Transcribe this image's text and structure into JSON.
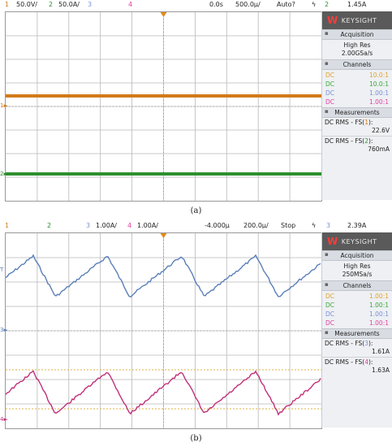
{
  "panel_a": {
    "topbar": {
      "ch1_num": "1",
      "ch1_scale": "50.0V/",
      "ch2_num": "2",
      "ch2_scale": "50.0A/",
      "ch3_num": "3",
      "ch4_num": "4",
      "time_offset": "0.0s",
      "time_scale": "500.0µ/",
      "trigger_mode": "Auto?",
      "trig_icon": "ϟ",
      "trig_ch": "2",
      "trig_level": "1.45A"
    },
    "side": {
      "brand": "KEYSIGHT",
      "acq_title": "Acquisition",
      "acq_mode": "High Res",
      "acq_rate": "2.00GSa/s",
      "ch_title": "Channels",
      "channels": [
        {
          "coupling": "DC",
          "ratio": "10.0:1",
          "color": "#e0a030"
        },
        {
          "coupling": "DC",
          "ratio": "10.0:1",
          "color": "#3aa83a"
        },
        {
          "coupling": "DC",
          "ratio": "1.00:1",
          "color": "#7a8fd8"
        },
        {
          "coupling": "DC",
          "ratio": "1.00:1",
          "color": "#e040a0"
        }
      ],
      "meas_title": "Measurements",
      "meas1_label": "DC RMS - FS(",
      "meas1_ch": "1",
      "meas1_value": "22.6V",
      "meas2_label": "DC RMS - FS(",
      "meas2_ch": "2",
      "meas2_value": "760mA"
    },
    "caption": "(a)"
  },
  "panel_b": {
    "topbar": {
      "ch1_num": "1",
      "ch2_num": "2",
      "ch3_num": "3",
      "ch3_scale": "1.00A/",
      "ch4_num": "4",
      "ch4_scale": "1.00A/",
      "time_offset": "-4.000µ",
      "time_scale": "200.0µ/",
      "trigger_mode": "Stop",
      "trig_icon": "ϟ",
      "trig_ch": "3",
      "trig_level": "2.39A"
    },
    "side": {
      "brand": "KEYSIGHT",
      "acq_title": "Acquisition",
      "acq_mode": "High Res",
      "acq_rate": "250MSa/s",
      "ch_title": "Channels",
      "channels": [
        {
          "coupling": "DC",
          "ratio": "1.00:1",
          "color": "#e0a030"
        },
        {
          "coupling": "DC",
          "ratio": "1.00:1",
          "color": "#3aa83a"
        },
        {
          "coupling": "DC",
          "ratio": "1.00:1",
          "color": "#7a8fd8"
        },
        {
          "coupling": "DC",
          "ratio": "1.00:1",
          "color": "#e040a0"
        }
      ],
      "meas_title": "Measurements",
      "meas1_label": "DC RMS - FS(",
      "meas1_ch": "3",
      "meas1_value": "1.61A",
      "meas2_label": "DC RMS - FS(",
      "meas2_ch": "4",
      "meas2_value": "1.63A"
    },
    "caption": "(b)"
  },
  "colors": {
    "ch1": "#d27a1a",
    "ch2": "#2f8f2f",
    "ch3": "#5b7fb8",
    "ch4": "#c0307a",
    "trigger": "#e08a1a"
  }
}
